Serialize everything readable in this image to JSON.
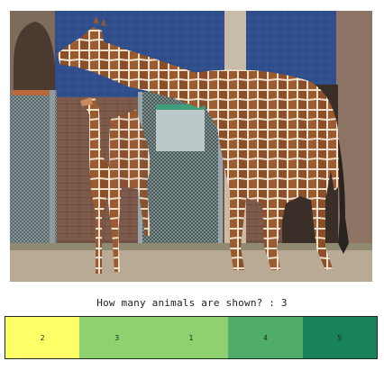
{
  "image": {
    "subject": "giraffes"
  },
  "question": {
    "text": "How many animals are shown? : 3"
  },
  "answers": [
    {
      "label": "2",
      "color": "#ffff66"
    },
    {
      "label": "3",
      "color": "#8ed16e"
    },
    {
      "label": "1",
      "color": "#8ed16e"
    },
    {
      "label": "4",
      "color": "#4fac69"
    },
    {
      "label": "5",
      "color": "#18825a"
    }
  ]
}
